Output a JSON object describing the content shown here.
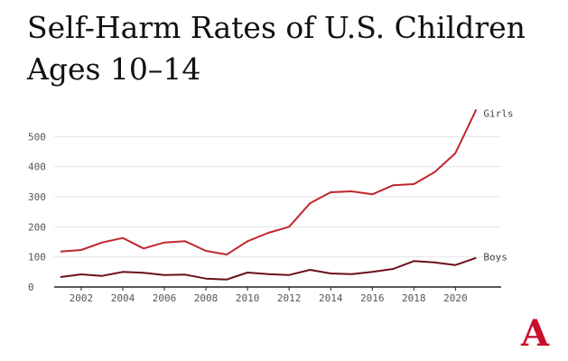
{
  "chart_data": {
    "type": "line",
    "title": "Self-Harm Rates of U.S. Children Ages 10–14",
    "xlabel": "",
    "ylabel": "",
    "x": [
      2001,
      2002,
      2003,
      2004,
      2005,
      2006,
      2007,
      2008,
      2009,
      2010,
      2011,
      2012,
      2013,
      2014,
      2015,
      2016,
      2017,
      2018,
      2019,
      2020,
      2021
    ],
    "xticks": [
      "2002",
      "2004",
      "2006",
      "2008",
      "2010",
      "2012",
      "2014",
      "2016",
      "2018",
      "2020"
    ],
    "xtick_values": [
      2002,
      2004,
      2006,
      2008,
      2010,
      2012,
      2014,
      2016,
      2018,
      2020
    ],
    "yticks": [
      "0",
      "100",
      "200",
      "300",
      "400",
      "500"
    ],
    "ytick_values": [
      0,
      100,
      200,
      300,
      400,
      500
    ],
    "xlim": [
      2000.7,
      2022.2
    ],
    "ylim": [
      0,
      600
    ],
    "grid": true,
    "legend": "inline-right",
    "series": [
      {
        "name": "Girls",
        "color": "#c0272d",
        "values": [
          118,
          123,
          148,
          163,
          128,
          148,
          152,
          120,
          108,
          152,
          180,
          200,
          278,
          315,
          318,
          308,
          338,
          342,
          382,
          445,
          590
        ]
      },
      {
        "name": "Boys",
        "color": "#6b1018",
        "values": [
          33,
          42,
          37,
          50,
          47,
          40,
          41,
          28,
          25,
          48,
          43,
          40,
          57,
          45,
          43,
          50,
          60,
          86,
          82,
          73,
          97
        ]
      }
    ]
  },
  "logo": {
    "name": "the-atlantic-logo",
    "color": "#c8102e",
    "text": "A"
  }
}
